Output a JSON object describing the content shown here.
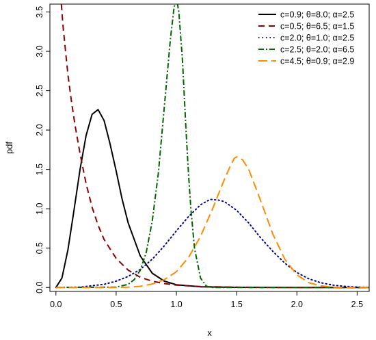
{
  "chart_data": {
    "type": "line",
    "title": "",
    "xlabel": "x",
    "ylabel": "pdf",
    "xlim": [
      -0.05,
      2.6
    ],
    "ylim": [
      -0.05,
      3.6
    ],
    "xticks": [
      "0.0",
      "0.5",
      "1.0",
      "1.5",
      "2.0",
      "2.5"
    ],
    "yticks": [
      "0.0",
      "0.5",
      "1.0",
      "1.5",
      "2.0",
      "2.5",
      "3.0",
      "3.5"
    ],
    "grid": false,
    "legend_position": "top-right",
    "series": [
      {
        "name": "c=0.9; θ=8.0; α=2.5",
        "color": "#000000",
        "dash": "solid",
        "x": [
          0.0,
          0.05,
          0.1,
          0.15,
          0.2,
          0.25,
          0.3,
          0.35,
          0.4,
          0.45,
          0.5,
          0.55,
          0.6,
          0.7,
          0.8,
          0.9,
          1.0,
          1.2,
          1.5,
          2.0,
          2.6
        ],
        "y": [
          0.0,
          0.12,
          0.48,
          0.98,
          1.5,
          1.93,
          2.2,
          2.26,
          2.12,
          1.82,
          1.48,
          1.12,
          0.82,
          0.4,
          0.18,
          0.08,
          0.035,
          0.008,
          0.002,
          0.0,
          0.0
        ]
      },
      {
        "name": "c=0.5; θ=6.5; α=1.5",
        "color": "#8b0000",
        "dash": "long",
        "x": [
          0.045,
          0.06,
          0.08,
          0.1,
          0.13,
          0.16,
          0.2,
          0.25,
          0.3,
          0.35,
          0.4,
          0.5,
          0.6,
          0.7,
          0.8,
          0.9,
          1.0,
          1.2,
          1.5,
          2.0,
          2.6
        ],
        "y": [
          3.6,
          3.3,
          3.0,
          2.7,
          2.35,
          2.05,
          1.7,
          1.32,
          1.02,
          0.79,
          0.61,
          0.37,
          0.22,
          0.13,
          0.08,
          0.05,
          0.03,
          0.012,
          0.004,
          0.0,
          0.0
        ]
      },
      {
        "name": "c=2.0; θ=1.0; α=2.5",
        "color": "#00008b",
        "dash": "dotted",
        "x": [
          0.0,
          0.2,
          0.4,
          0.5,
          0.6,
          0.7,
          0.8,
          0.9,
          1.0,
          1.1,
          1.2,
          1.28,
          1.35,
          1.4,
          1.5,
          1.6,
          1.7,
          1.8,
          1.9,
          2.0,
          2.1,
          2.2,
          2.3,
          2.4,
          2.5,
          2.6
        ],
        "y": [
          0.0,
          0.005,
          0.04,
          0.08,
          0.14,
          0.23,
          0.36,
          0.53,
          0.72,
          0.9,
          1.05,
          1.12,
          1.11,
          1.09,
          0.98,
          0.82,
          0.63,
          0.46,
          0.31,
          0.19,
          0.11,
          0.06,
          0.03,
          0.014,
          0.006,
          0.002
        ]
      },
      {
        "name": "c=2.5; θ=2.0; α=6.5",
        "color": "#006400",
        "dash": "dashdot",
        "x": [
          0.0,
          0.5,
          0.6,
          0.65,
          0.7,
          0.75,
          0.8,
          0.85,
          0.9,
          0.95,
          0.98,
          1.0,
          1.02,
          1.05,
          1.08,
          1.1,
          1.12,
          1.15,
          1.2,
          1.25,
          1.3,
          2.6
        ],
        "y": [
          0.0,
          0.005,
          0.04,
          0.1,
          0.22,
          0.45,
          0.85,
          1.45,
          2.3,
          3.15,
          3.55,
          3.68,
          3.5,
          2.9,
          2.0,
          1.45,
          1.0,
          0.5,
          0.12,
          0.015,
          0.0,
          0.0
        ]
      },
      {
        "name": "c=4.5; θ=0.9; α=2.9",
        "color": "#ff8c00",
        "dash": "dashed",
        "x": [
          0.0,
          0.5,
          0.6,
          0.7,
          0.8,
          0.9,
          1.0,
          1.1,
          1.2,
          1.3,
          1.4,
          1.45,
          1.48,
          1.5,
          1.55,
          1.6,
          1.7,
          1.8,
          1.9,
          2.0,
          2.1,
          2.2,
          2.3,
          2.4,
          2.6
        ],
        "y": [
          0.0,
          0.0,
          0.004,
          0.015,
          0.045,
          0.1,
          0.2,
          0.38,
          0.65,
          1.0,
          1.38,
          1.55,
          1.64,
          1.66,
          1.62,
          1.5,
          1.1,
          0.68,
          0.36,
          0.16,
          0.06,
          0.02,
          0.005,
          0.001,
          0.0
        ]
      }
    ]
  }
}
